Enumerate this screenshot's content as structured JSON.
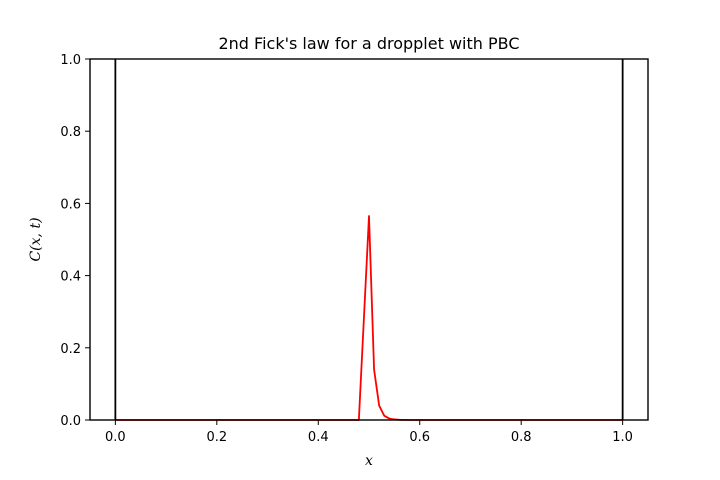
{
  "chart_data": {
    "type": "line",
    "title": "2nd Fick's law for a dropplet with PBC",
    "xlabel": "x",
    "ylabel": "C(x, t)",
    "xlim": [
      -0.05,
      1.05
    ],
    "ylim": [
      0.0,
      1.0
    ],
    "xticks": [
      0.0,
      0.2,
      0.4,
      0.6,
      0.8,
      1.0
    ],
    "xtick_labels": [
      "0.0",
      "0.2",
      "0.4",
      "0.6",
      "0.8",
      "1.0"
    ],
    "yticks": [
      0.0,
      0.2,
      0.4,
      0.6,
      0.8,
      1.0
    ],
    "ytick_labels": [
      "0.0",
      "0.2",
      "0.4",
      "0.6",
      "0.8",
      "1.0"
    ],
    "grid": false,
    "boundaries": [
      {
        "x": 0.0,
        "color": "#000000"
      },
      {
        "x": 1.0,
        "color": "#000000"
      }
    ],
    "series": [
      {
        "color": "#ff0000",
        "x": [
          0.0,
          0.48,
          0.5,
          0.51,
          0.52,
          0.53,
          0.54,
          0.55,
          0.56,
          0.58,
          0.6,
          0.7,
          0.8,
          0.9,
          1.0
        ],
        "y": [
          0.0,
          0.0,
          0.565,
          0.14,
          0.04,
          0.012,
          0.004,
          0.0015,
          0.0005,
          0.0,
          0.0,
          0.0,
          0.0,
          0.0,
          0.0
        ]
      }
    ]
  }
}
